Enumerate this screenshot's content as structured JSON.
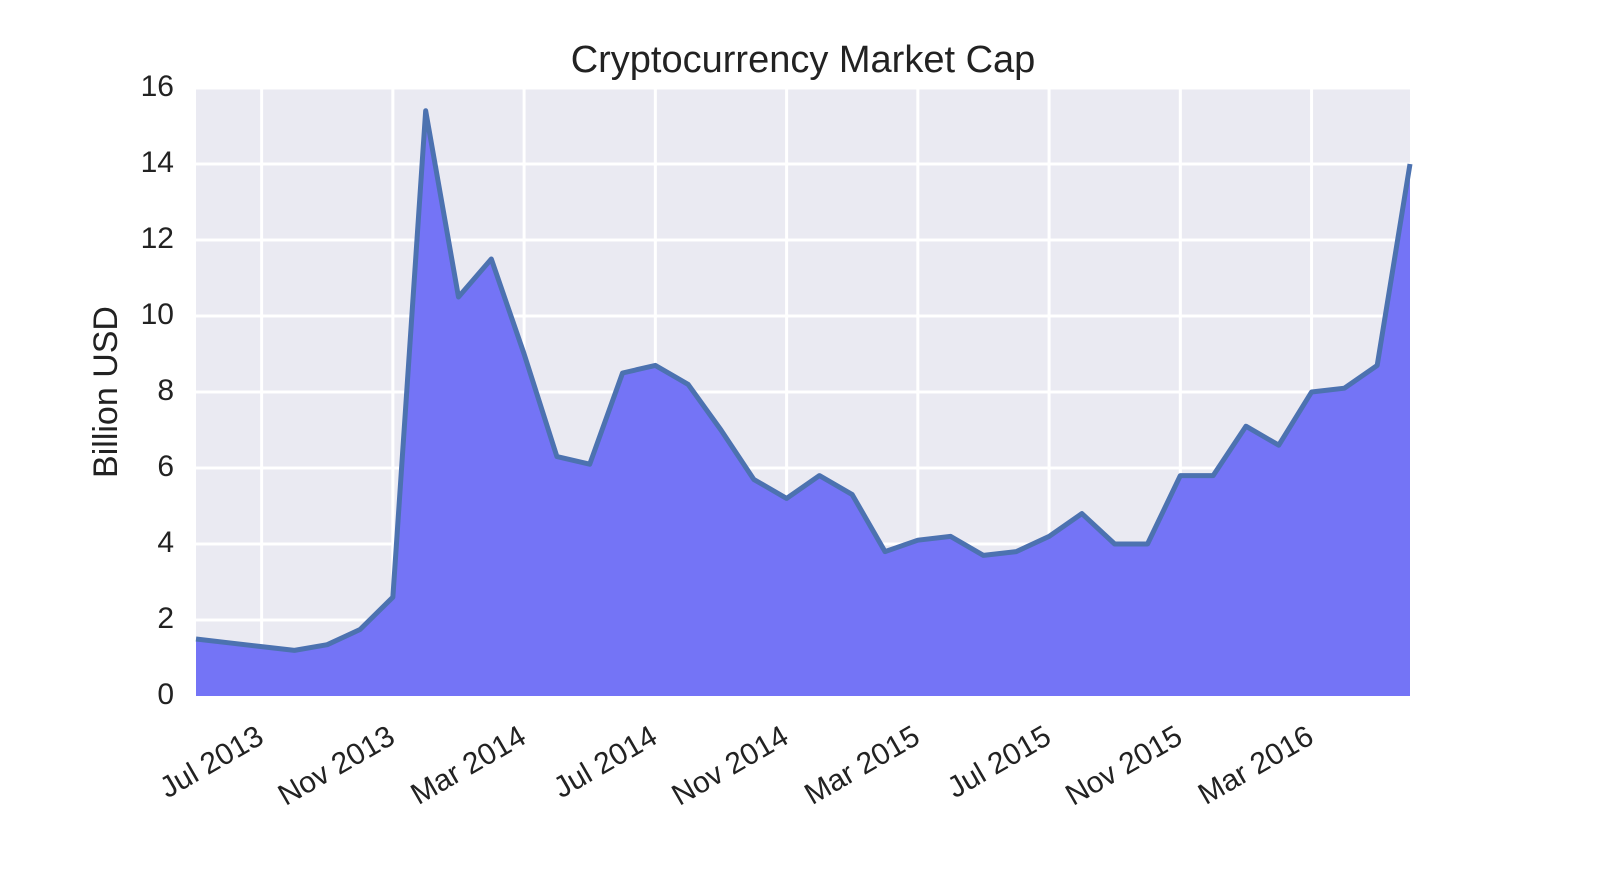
{
  "chart_data": {
    "type": "area",
    "title": "Cryptocurrency Market Cap",
    "ylabel": "Billion USD",
    "x": [
      "2013-05",
      "2013-06",
      "2013-07",
      "2013-08",
      "2013-09",
      "2013-10",
      "2013-11",
      "2013-12",
      "2014-01",
      "2014-02",
      "2014-03",
      "2014-04",
      "2014-05",
      "2014-06",
      "2014-07",
      "2014-08",
      "2014-09",
      "2014-10",
      "2014-11",
      "2014-12",
      "2015-01",
      "2015-02",
      "2015-03",
      "2015-04",
      "2015-05",
      "2015-06",
      "2015-07",
      "2015-08",
      "2015-09",
      "2015-10",
      "2015-11",
      "2015-12",
      "2016-01",
      "2016-02",
      "2016-03",
      "2016-04",
      "2016-05",
      "2016-06"
    ],
    "values": [
      1.5,
      1.4,
      1.3,
      1.2,
      1.35,
      1.75,
      2.6,
      15.4,
      10.5,
      11.5,
      9.0,
      6.3,
      6.1,
      8.5,
      8.7,
      8.2,
      7.0,
      5.7,
      5.2,
      5.8,
      5.3,
      3.8,
      4.1,
      4.2,
      3.7,
      3.8,
      4.2,
      4.8,
      4.0,
      4.0,
      5.8,
      5.8,
      7.1,
      6.6,
      8.0,
      8.1,
      8.7,
      14.0
    ],
    "line_color": "#4c72b0",
    "fill_color": "#7474f6",
    "xlim": [
      "2013-05",
      "2016-06"
    ],
    "xticks": [
      {
        "value": "2013-07",
        "label": "Jul 2013"
      },
      {
        "value": "2013-11",
        "label": "Nov 2013"
      },
      {
        "value": "2014-03",
        "label": "Mar 2014"
      },
      {
        "value": "2014-07",
        "label": "Jul 2014"
      },
      {
        "value": "2014-11",
        "label": "Nov 2014"
      },
      {
        "value": "2015-03",
        "label": "Mar 2015"
      },
      {
        "value": "2015-07",
        "label": "Jul 2015"
      },
      {
        "value": "2015-11",
        "label": "Nov 2015"
      },
      {
        "value": "2016-03",
        "label": "Mar 2016"
      }
    ],
    "ylim": [
      0,
      16
    ],
    "yticks": [
      0,
      2,
      4,
      6,
      8,
      10,
      12,
      14,
      16
    ],
    "grid": true
  }
}
